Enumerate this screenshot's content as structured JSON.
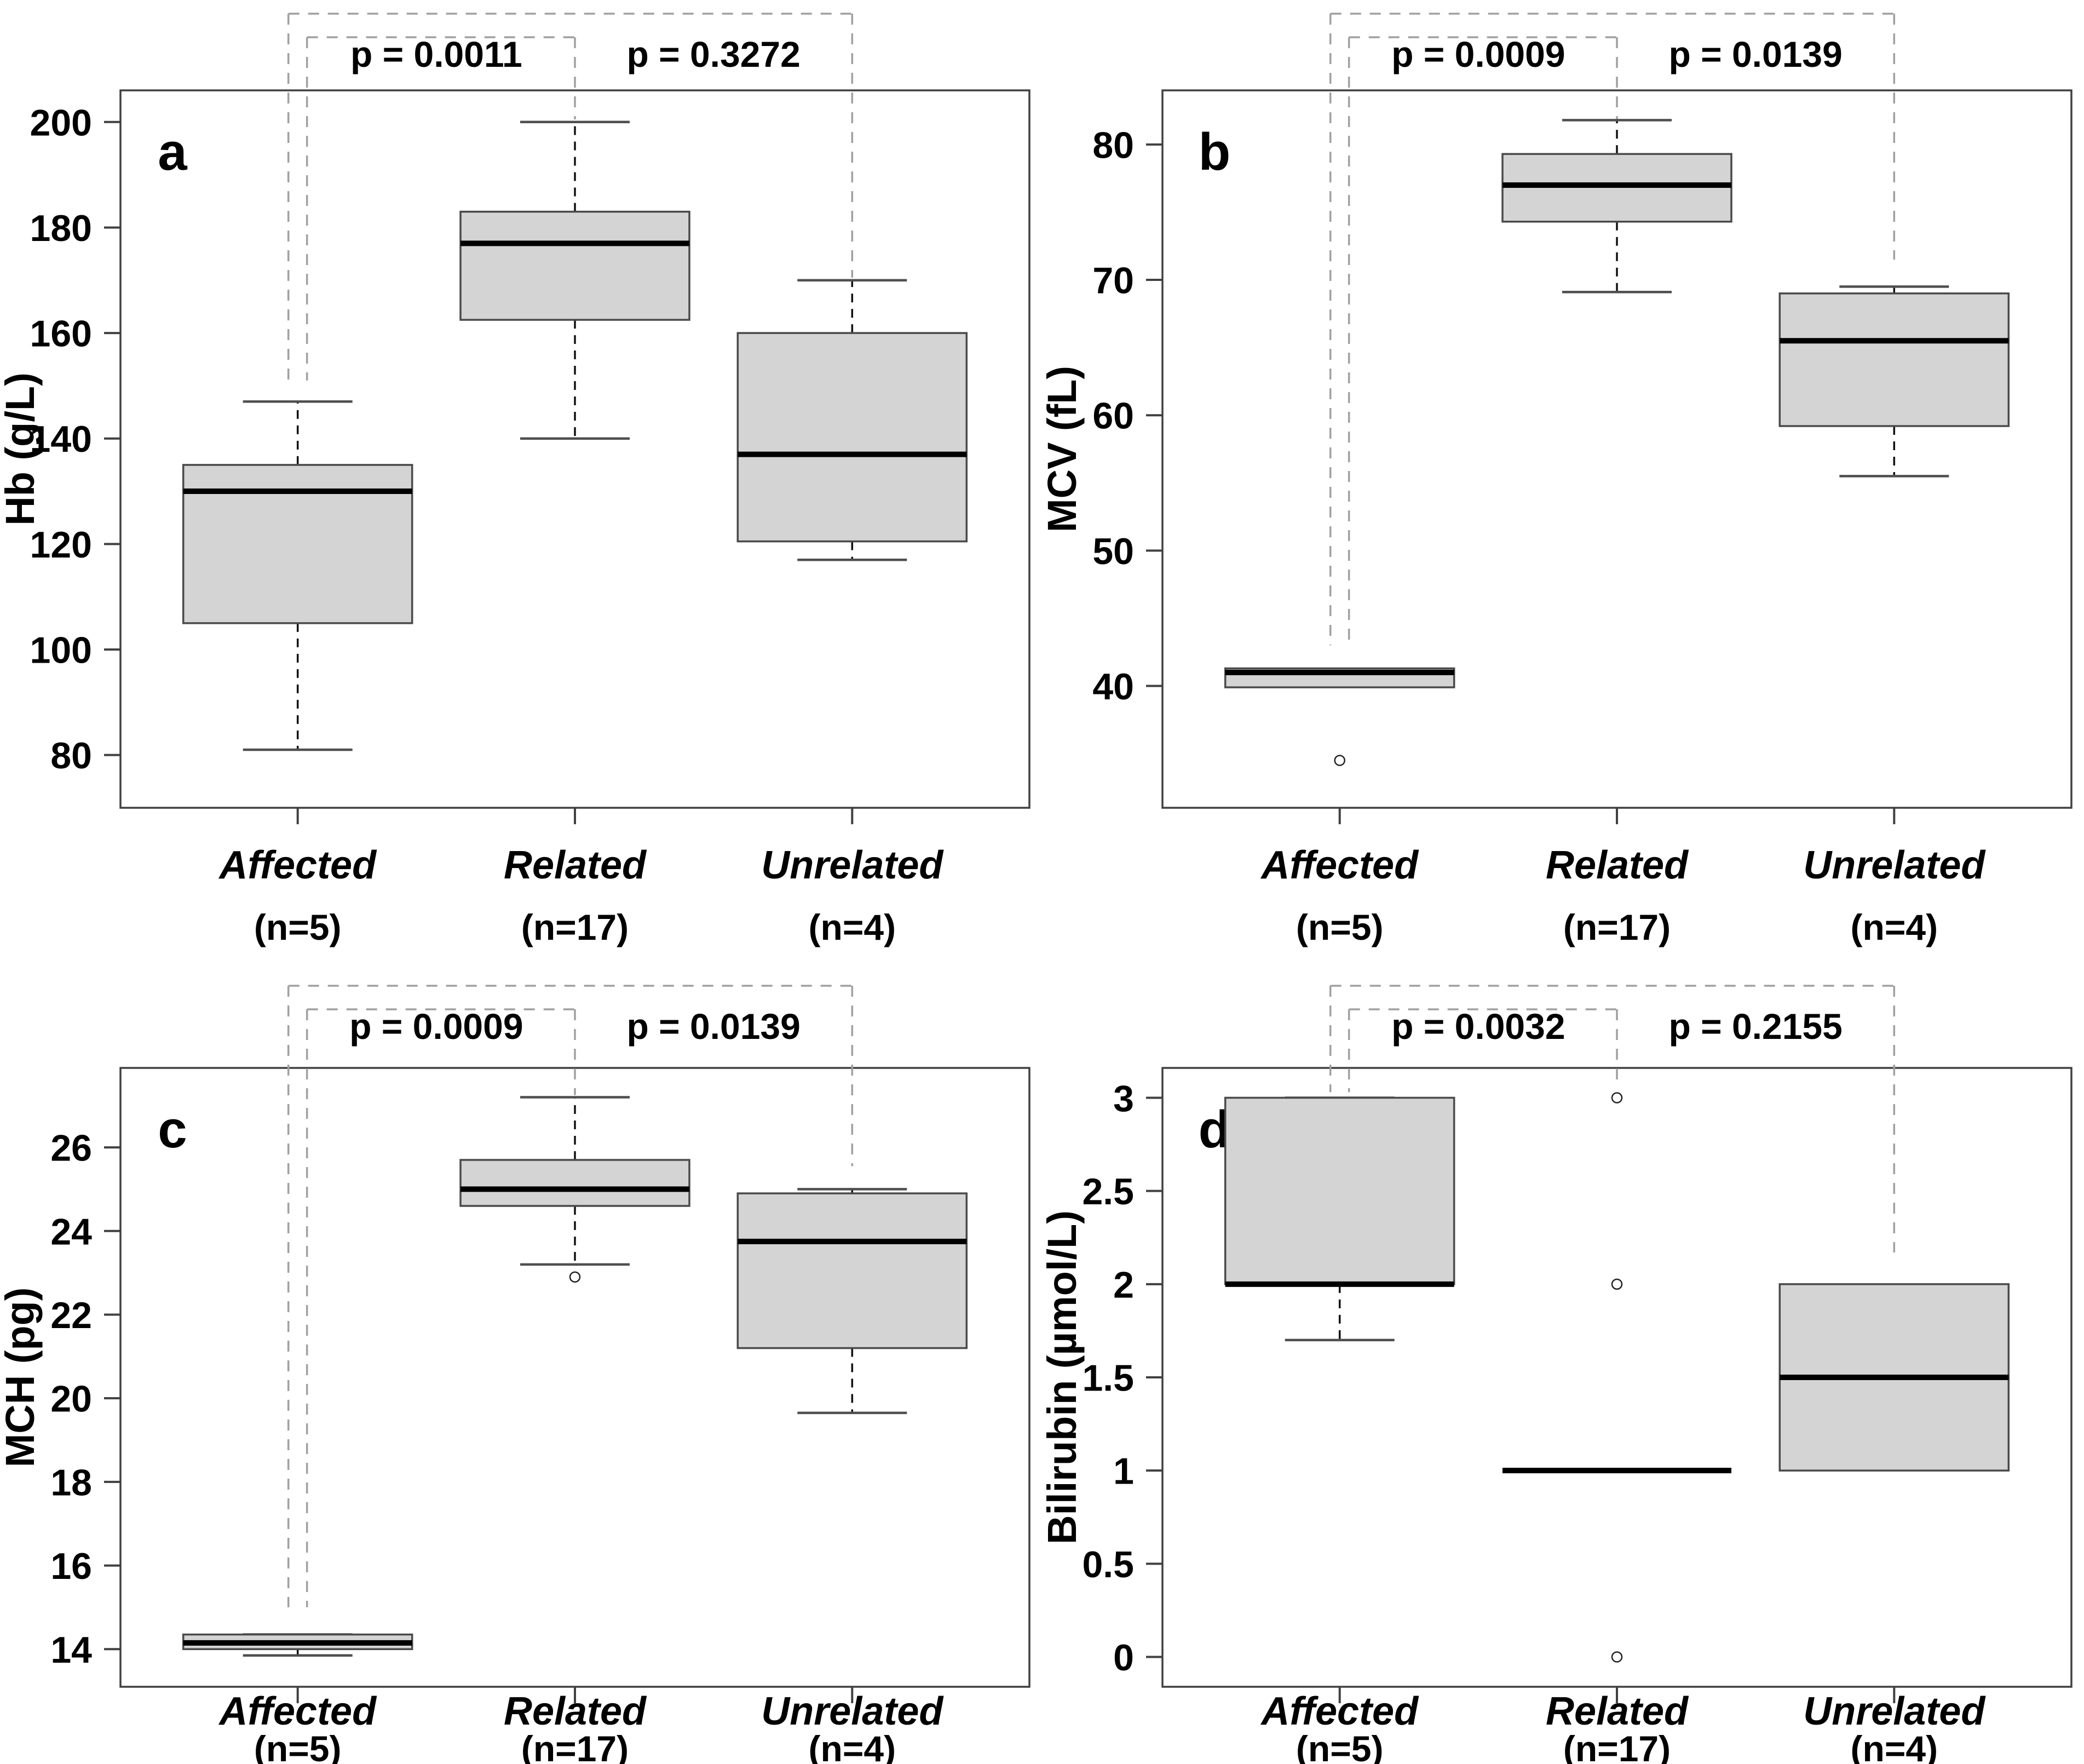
{
  "figure": {
    "colors": {
      "background": "#ffffff",
      "box_fill": "#d4d4d4",
      "box_border": "#4a4a4a",
      "median": "#000000",
      "whisker": "#111111",
      "cap": "#4f4f4f",
      "bracket": "#a0a0a0",
      "frame": "#404040",
      "text": "#000000"
    }
  },
  "categories": [
    {
      "label": "Affected",
      "n_label": "(n=5)"
    },
    {
      "label": "Related",
      "n_label": "(n=17)"
    },
    {
      "label": "Unrelated",
      "n_label": "(n=4)"
    }
  ],
  "chart_data": [
    {
      "type": "boxplot",
      "panel_label": "a",
      "ylabel": "Hb (g/L)",
      "ylim": [
        70,
        206
      ],
      "yticks": [
        80,
        100,
        120,
        140,
        160,
        180,
        200
      ],
      "categories": [
        "Affected (n=5)",
        "Related (n=17)",
        "Unrelated (n=4)"
      ],
      "boxes": [
        {
          "whisker_low": 81,
          "q1": 105,
          "median": 130,
          "q3": 135,
          "whisker_high": 147,
          "outliers": []
        },
        {
          "whisker_low": 140,
          "q1": 162.5,
          "median": 177,
          "q3": 183,
          "whisker_high": 200,
          "outliers": []
        },
        {
          "whisker_low": 117,
          "q1": 120.5,
          "median": 137,
          "q3": 160,
          "whisker_high": 170,
          "outliers": []
        }
      ],
      "comparisons": [
        {
          "label": "p = 0.0011",
          "between": [
            0,
            1
          ],
          "drop_left": 151,
          "drop_right": 200.5
        },
        {
          "label": "p = 0.3272",
          "between": [
            0,
            2
          ],
          "drop_left": 151,
          "drop_right": 170.5
        }
      ]
    },
    {
      "type": "boxplot",
      "panel_label": "b",
      "ylabel": "MCV (fL)",
      "ylim": [
        31,
        84
      ],
      "yticks": [
        40,
        50,
        60,
        70,
        80
      ],
      "categories": [
        "Affected (n=5)",
        "Related (n=17)",
        "Unrelated (n=4)"
      ],
      "boxes": [
        {
          "whisker_low": null,
          "q1": 39.9,
          "median": 41,
          "q3": 41.3,
          "whisker_high": null,
          "outliers": [
            34.5
          ]
        },
        {
          "whisker_low": 69.1,
          "q1": 74.3,
          "median": 77,
          "q3": 79.3,
          "whisker_high": 81.8,
          "outliers": []
        },
        {
          "whisker_low": 55.5,
          "q1": 59.2,
          "median": 65.5,
          "q3": 69,
          "whisker_high": 69.5,
          "outliers": []
        }
      ],
      "comparisons": [
        {
          "label": "p = 0.0009",
          "between": [
            0,
            1
          ],
          "drop_left": 43,
          "drop_right": 81.8
        },
        {
          "label": "p = 0.0139",
          "between": [
            0,
            2
          ],
          "drop_left": 43,
          "drop_right": 71.5
        }
      ]
    },
    {
      "type": "boxplot",
      "panel_label": "c",
      "ylabel": "MCH (pg)",
      "ylim": [
        13.1,
        27.9
      ],
      "yticks": [
        14,
        16,
        18,
        20,
        22,
        24,
        26
      ],
      "categories": [
        "Affected (n=5)",
        "Related (n=17)",
        "Unrelated (n=4)"
      ],
      "boxes": [
        {
          "whisker_low": 13.85,
          "q1": 14.0,
          "median": 14.15,
          "q3": 14.35,
          "whisker_high": 14.35,
          "outliers": []
        },
        {
          "whisker_low": 23.2,
          "q1": 24.6,
          "median": 25.0,
          "q3": 25.7,
          "whisker_high": 27.2,
          "outliers": [
            22.9
          ]
        },
        {
          "whisker_low": 19.65,
          "q1": 21.2,
          "median": 23.75,
          "q3": 24.9,
          "whisker_high": 25.0,
          "outliers": []
        }
      ],
      "comparisons": [
        {
          "label": "p = 0.0009",
          "between": [
            0,
            1
          ],
          "drop_left": 15.0,
          "drop_right": 27.25
        },
        {
          "label": "p = 0.0139",
          "between": [
            0,
            2
          ],
          "drop_left": 15.0,
          "drop_right": 25.55
        }
      ]
    },
    {
      "type": "boxplot",
      "panel_label": "d",
      "ylabel": "Bilirubin (µmol/L)",
      "ylim": [
        -0.16,
        3.16
      ],
      "yticks": [
        0,
        0.5,
        1,
        1.5,
        2,
        2.5,
        3
      ],
      "categories": [
        "Affected (n=5)",
        "Related (n=17)",
        "Unrelated (n=4)"
      ],
      "boxes": [
        {
          "whisker_low": 1.7,
          "q1": 2.0,
          "median": 2.0,
          "q3": 3.0,
          "whisker_high": 3.0,
          "outliers": []
        },
        {
          "whisker_low": null,
          "q1": 1.0,
          "median": 1.0,
          "q3": 1.0,
          "whisker_high": null,
          "outliers": [
            3.0,
            2.0,
            0.0
          ]
        },
        {
          "whisker_low": null,
          "q1": 1.0,
          "median": 1.5,
          "q3": 2.0,
          "whisker_high": null,
          "outliers": []
        }
      ],
      "comparisons": [
        {
          "label": "p = 0.0032",
          "between": [
            0,
            1
          ],
          "drop_left": 3.03,
          "drop_right": 3.06
        },
        {
          "label": "p = 0.2155",
          "between": [
            0,
            2
          ],
          "drop_left": 3.03,
          "drop_right": 2.17
        }
      ]
    }
  ]
}
